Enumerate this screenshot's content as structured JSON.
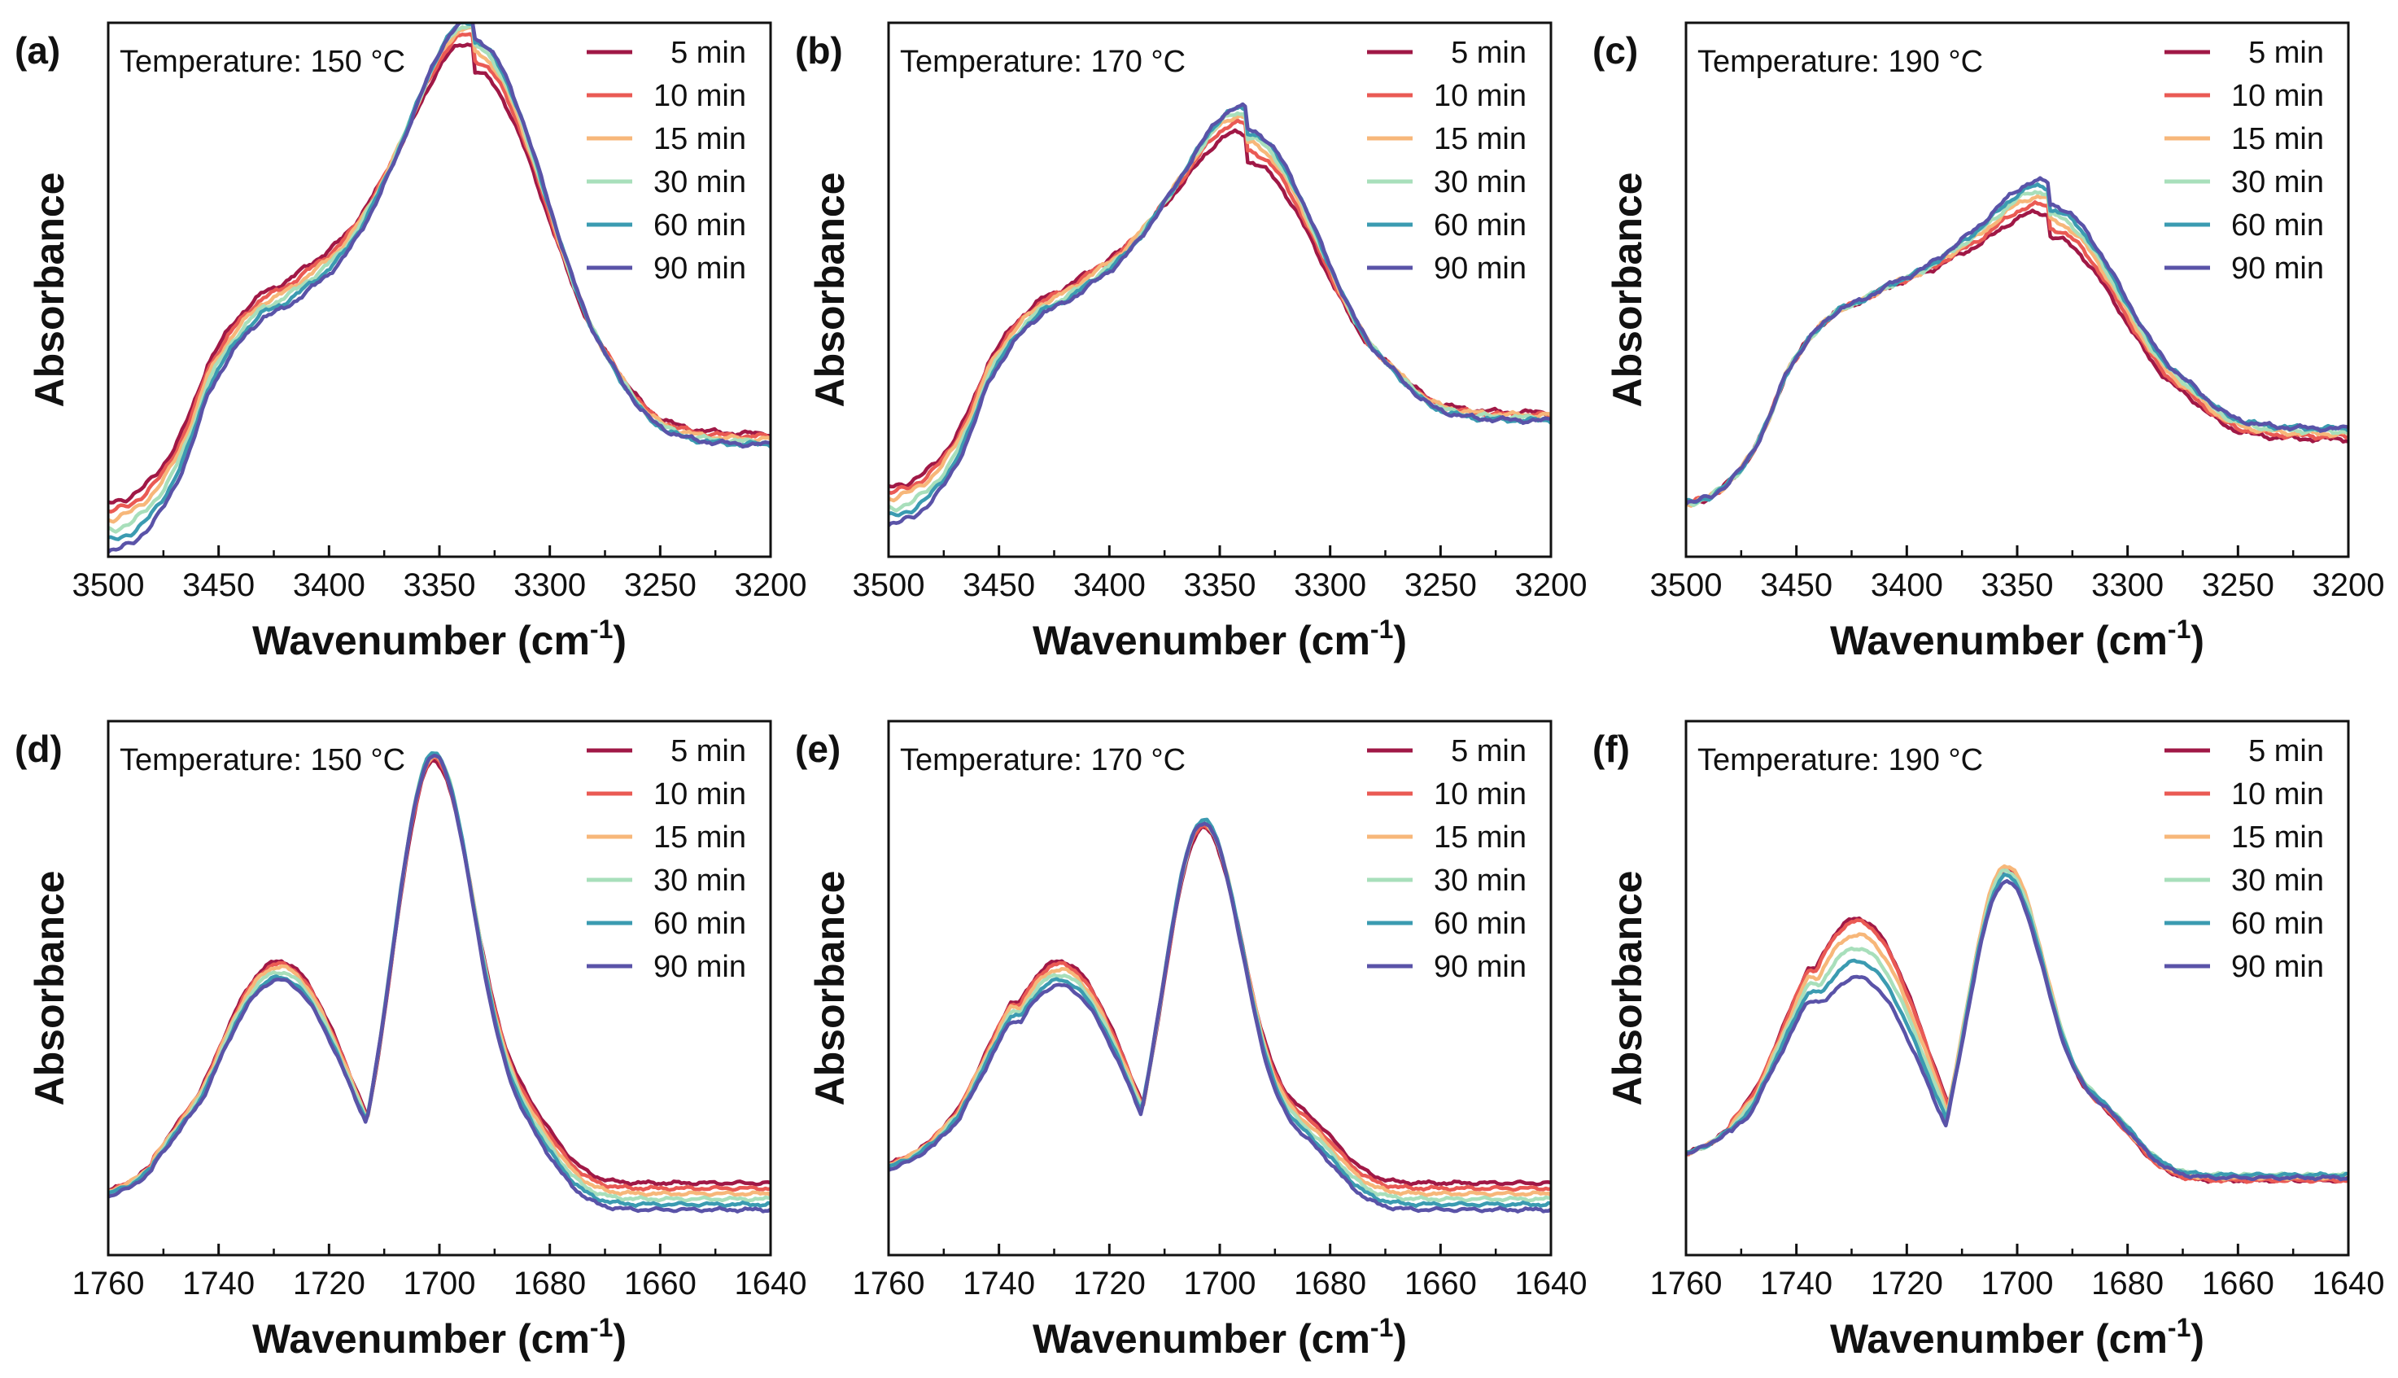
{
  "legend_colors": [
    "#a01846",
    "#ea5a54",
    "#f7b77a",
    "#a8dfbb",
    "#3b9bb1",
    "#5a53a8"
  ],
  "chart_data": [
    {
      "id": "a",
      "type": "line",
      "panel_label": "(a)",
      "temperature": "Temperature: 150 °C",
      "xlabel": "Wavenumber (cm",
      "xlabel_sup": "-1",
      "xlabel_close": ")",
      "ylabel": "Absorbance",
      "xlim": [
        3500,
        3200
      ],
      "ylim": [
        0,
        1
      ],
      "xticks": [
        3500,
        3450,
        3400,
        3350,
        3300,
        3250,
        3200
      ],
      "region": "OH",
      "peak_center": 3335,
      "peak_heights": [
        0.91,
        0.93,
        0.945,
        0.955,
        0.965,
        0.97
      ],
      "left_values": [
        0.1,
        0.085,
        0.07,
        0.05,
        0.03,
        0.01
      ],
      "right_values": [
        0.23,
        0.225,
        0.22,
        0.215,
        0.21,
        0.21
      ],
      "mid_shift": [
        0.03,
        0.02,
        0.01,
        0,
        -0.01,
        -0.02
      ],
      "series": [
        {
          "name": "5 min"
        },
        {
          "name": "10 min"
        },
        {
          "name": "15 min"
        },
        {
          "name": "30 min"
        },
        {
          "name": "60 min"
        },
        {
          "name": "90 min"
        }
      ]
    },
    {
      "id": "b",
      "type": "line",
      "panel_label": "(b)",
      "temperature": "Temperature: 170 °C",
      "xlabel": "Wavenumber (cm",
      "xlabel_sup": "-1",
      "xlabel_close": ")",
      "ylabel": "Absorbance",
      "xlim": [
        3500,
        3200
      ],
      "ylim": [
        0,
        1
      ],
      "xticks": [
        3500,
        3450,
        3400,
        3350,
        3300,
        3250,
        3200
      ],
      "region": "OH",
      "peak_center": 3338,
      "peak_heights": [
        0.74,
        0.76,
        0.775,
        0.785,
        0.795,
        0.8
      ],
      "left_values": [
        0.13,
        0.12,
        0.11,
        0.09,
        0.075,
        0.06
      ],
      "right_values": [
        0.27,
        0.265,
        0.265,
        0.26,
        0.255,
        0.255
      ],
      "mid_shift": [
        0.02,
        0.015,
        0.01,
        0,
        -0.005,
        -0.01
      ],
      "series": [
        {
          "name": "5 min"
        },
        {
          "name": "10 min"
        },
        {
          "name": "15 min"
        },
        {
          "name": "30 min"
        },
        {
          "name": "60 min"
        },
        {
          "name": "90 min"
        }
      ]
    },
    {
      "id": "c",
      "type": "line",
      "panel_label": "(c)",
      "temperature": "Temperature: 190 °C",
      "xlabel": "Wavenumber (cm",
      "xlabel_sup": "-1",
      "xlabel_close": ")",
      "ylabel": "Absorbance",
      "xlim": [
        3500,
        3200
      ],
      "ylim": [
        0,
        1
      ],
      "xticks": [
        3500,
        3450,
        3400,
        3350,
        3300,
        3250,
        3200
      ],
      "region": "OH",
      "peak_center": 3336,
      "peak_heights": [
        0.6,
        0.615,
        0.63,
        0.64,
        0.65,
        0.66
      ],
      "left_values": [
        0.1,
        0.1,
        0.1,
        0.1,
        0.1,
        0.1
      ],
      "right_values": [
        0.22,
        0.225,
        0.23,
        0.235,
        0.24,
        0.24
      ],
      "mid_shift": [
        0,
        0,
        0,
        0,
        0,
        0
      ],
      "series": [
        {
          "name": "5 min"
        },
        {
          "name": "10 min"
        },
        {
          "name": "15 min"
        },
        {
          "name": "30 min"
        },
        {
          "name": "60 min"
        },
        {
          "name": "90 min"
        }
      ]
    },
    {
      "id": "d",
      "type": "line",
      "panel_label": "(d)",
      "temperature": "Temperature: 150 °C",
      "xlabel": "Wavenumber (cm",
      "xlabel_sup": "-1",
      "xlabel_close": ")",
      "ylabel": "Absorbance",
      "xlim": [
        1760,
        1640
      ],
      "ylim": [
        0,
        1
      ],
      "xticks": [
        1760,
        1740,
        1720,
        1700,
        1680,
        1660,
        1640
      ],
      "region": "CO",
      "peak_center": 1701,
      "peak_heights": [
        0.925,
        0.93,
        0.935,
        0.94,
        0.94,
        0.935
      ],
      "shoulder": [
        0.55,
        0.545,
        0.54,
        0.53,
        0.52,
        0.515
      ],
      "right_values": [
        0.135,
        0.125,
        0.115,
        0.105,
        0.095,
        0.085
      ],
      "left_values": [
        0.12,
        0.12,
        0.12,
        0.115,
        0.115,
        0.11
      ],
      "mid_shift": [
        0,
        0,
        0,
        0,
        0,
        0
      ],
      "series": [
        {
          "name": "5 min"
        },
        {
          "name": "10 min"
        },
        {
          "name": "15 min"
        },
        {
          "name": "30 min"
        },
        {
          "name": "60 min"
        },
        {
          "name": "90 min"
        }
      ]
    },
    {
      "id": "e",
      "type": "line",
      "panel_label": "(e)",
      "temperature": "Temperature: 170 °C",
      "xlabel": "Wavenumber (cm",
      "xlabel_sup": "-1",
      "xlabel_close": ")",
      "ylabel": "Absorbance",
      "xlim": [
        1760,
        1640
      ],
      "ylim": [
        0,
        1
      ],
      "xticks": [
        1760,
        1740,
        1720,
        1700,
        1680,
        1660,
        1640
      ],
      "region": "CO",
      "peak_center": 1703,
      "peak_heights": [
        0.8,
        0.805,
        0.81,
        0.81,
        0.815,
        0.81
      ],
      "shoulder": [
        0.55,
        0.545,
        0.535,
        0.525,
        0.515,
        0.505
      ],
      "right_values": [
        0.135,
        0.125,
        0.115,
        0.105,
        0.095,
        0.085
      ],
      "left_values": [
        0.17,
        0.17,
        0.17,
        0.165,
        0.165,
        0.16
      ],
      "mid_shift": [
        0,
        0,
        0,
        0,
        0,
        0
      ],
      "series": [
        {
          "name": "5 min"
        },
        {
          "name": "10 min"
        },
        {
          "name": "15 min"
        },
        {
          "name": "30 min"
        },
        {
          "name": "60 min"
        },
        {
          "name": "90 min"
        }
      ]
    },
    {
      "id": "f",
      "type": "line",
      "panel_label": "(f)",
      "temperature": "Temperature: 190 °C",
      "xlabel": "Wavenumber (cm",
      "xlabel_sup": "-1",
      "xlabel_close": ")",
      "ylabel": "Absorbance",
      "xlim": [
        1760,
        1640
      ],
      "ylim": [
        0,
        1
      ],
      "xticks": [
        1760,
        1740,
        1720,
        1700,
        1680,
        1660,
        1640
      ],
      "region": "CO",
      "peak_center": 1702,
      "peak_heights": [
        0.72,
        0.725,
        0.73,
        0.72,
        0.71,
        0.7
      ],
      "shoulder": [
        0.63,
        0.625,
        0.6,
        0.575,
        0.55,
        0.52
      ],
      "right_values": [
        0.14,
        0.14,
        0.145,
        0.15,
        0.15,
        0.145
      ],
      "left_values": [
        0.19,
        0.19,
        0.19,
        0.19,
        0.19,
        0.19
      ],
      "mid_shift": [
        0,
        0,
        0,
        0,
        0,
        0
      ],
      "series": [
        {
          "name": "5 min"
        },
        {
          "name": "10 min"
        },
        {
          "name": "15 min"
        },
        {
          "name": "30 min"
        },
        {
          "name": "60 min"
        },
        {
          "name": "90 min"
        }
      ]
    }
  ]
}
